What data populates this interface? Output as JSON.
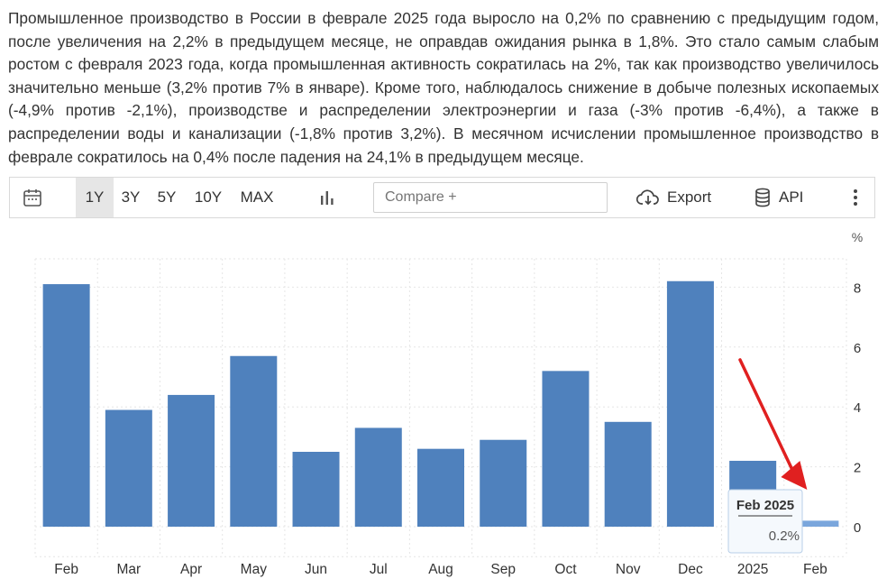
{
  "article": {
    "text": "Промышленное производство в России в феврале 2025 года выросло на 0,2% по сравнению с предыдущим годом, после увеличения на 2,2% в предыдущем месяце, не оправдав ожидания рынка в 1,8%. Это стало самым слабым ростом с февраля 2023 года, когда промышленная активность сократилась на 2%, так как производство увеличилось значительно меньше (3,2% против 7% в январе). Кроме того, наблюдалось снижение в добыче полезных ископаемых (-4,9% против -2,1%), производстве и распределении электроэнергии и газа (-3% против -6,4%), а также в распределении воды и канализации (-1,8% против 3,2%). В месячном исчислении промышленное производство в феврале сократилось на 0,4% после падения на 24,1% в предыдущем месяце."
  },
  "toolbar": {
    "ranges": [
      "1Y",
      "3Y",
      "5Y",
      "10Y",
      "MAX"
    ],
    "active_range": "1Y",
    "compare_placeholder": "Compare +",
    "export_label": "Export",
    "api_label": "API",
    "icons": {
      "calendar": "calendar-icon",
      "chart_type": "bar-chart-icon",
      "export": "cloud-download-icon",
      "api": "database-icon",
      "more": "more-vertical-icon"
    }
  },
  "chart_data": {
    "type": "bar",
    "unit": "%",
    "categories": [
      "Feb",
      "Mar",
      "Apr",
      "May",
      "Jun",
      "Jul",
      "Aug",
      "Sep",
      "Oct",
      "Nov",
      "Dec",
      "2025",
      "Feb"
    ],
    "values": [
      8.1,
      3.9,
      4.4,
      5.7,
      2.5,
      3.3,
      2.6,
      2.9,
      5.2,
      3.5,
      8.2,
      2.2,
      0.2
    ],
    "yticks": [
      0,
      2,
      4,
      6,
      8
    ],
    "ylim": [
      -1,
      8.5
    ],
    "grid": true,
    "bar_color": "#4f81bd",
    "highlight_color": "#7aa6dc",
    "annotation_arrow_color": "#e02020",
    "tooltip": {
      "title": "Feb 2025",
      "value": "0.2%"
    }
  }
}
